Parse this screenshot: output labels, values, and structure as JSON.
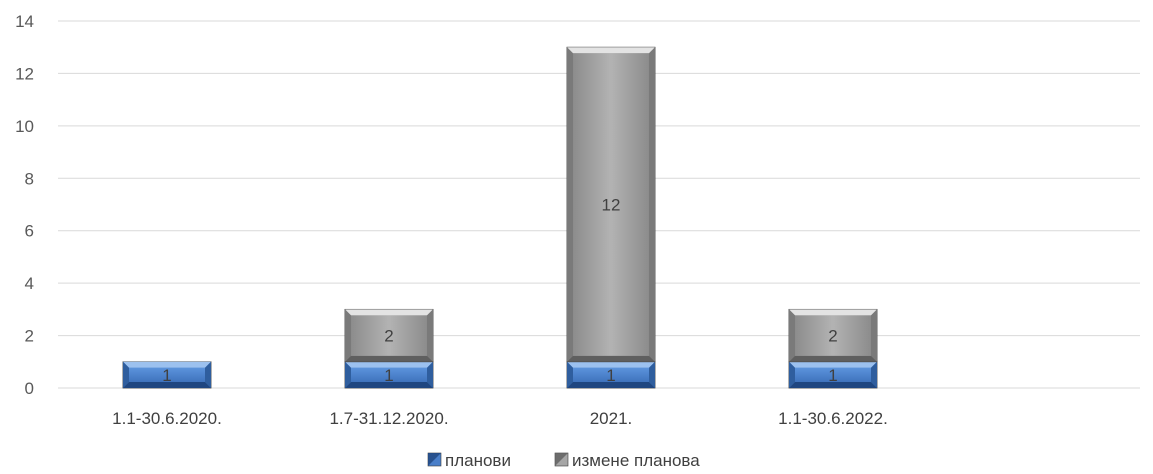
{
  "chart_data": {
    "type": "bar",
    "stacked": true,
    "categories": [
      "1.1-30.6.2020.",
      "1.7-31.12.2020.",
      "2021.",
      "1.1-30.6.2022."
    ],
    "series": [
      {
        "name": "планови",
        "values": [
          1,
          1,
          1,
          1
        ],
        "color": "#4a7fc9"
      },
      {
        "name": "измене планова",
        "values": [
          0,
          2,
          12,
          2
        ],
        "color": "#a6a6a6"
      }
    ],
    "ylim": [
      0,
      14
    ],
    "yticks": [
      0,
      2,
      4,
      6,
      8,
      10,
      12,
      14
    ],
    "grid": true,
    "legend": "bottom",
    "data_labels": true,
    "colors": {
      "gridline": "#d9d9d9",
      "text": "#404040"
    }
  }
}
